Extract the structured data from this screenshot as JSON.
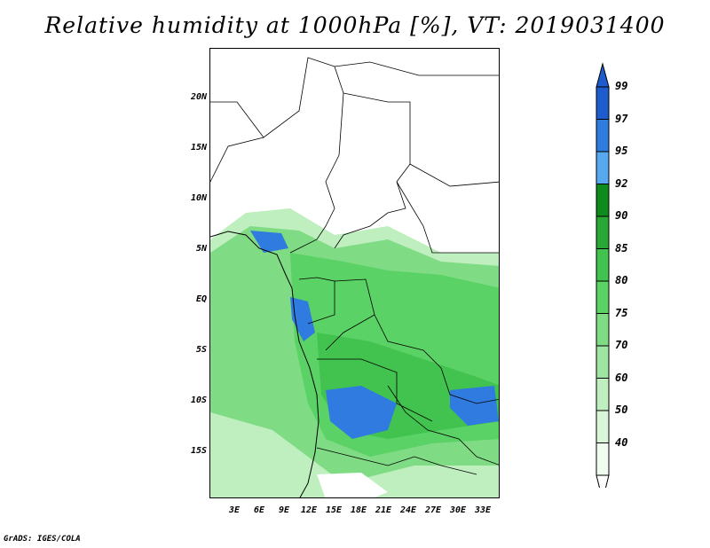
{
  "title": "Relative humidity at 1000hPa [%], VT: 2019031400",
  "credit": "GrADS: IGES/COLA",
  "lat_labels": [
    "20N",
    "15N",
    "10N",
    "5N",
    "EQ",
    "5S",
    "10S",
    "15S"
  ],
  "lon_labels": [
    "3E",
    "6E",
    "9E",
    "12E",
    "15E",
    "18E",
    "21E",
    "24E",
    "27E",
    "30E",
    "33E"
  ],
  "colorbar": {
    "levels": [
      "99",
      "97",
      "95",
      "92",
      "90",
      "85",
      "80",
      "75",
      "70",
      "60",
      "50",
      "40"
    ],
    "colors": [
      "#1e5ccd",
      "#2f7be0",
      "#58a8f0",
      "#0f8a1c",
      "#2aa836",
      "#42c24f",
      "#5bd265",
      "#7fdc84",
      "#9fe5a2",
      "#bfeebf",
      "#d9f6d8",
      "#f0fcef"
    ]
  }
}
